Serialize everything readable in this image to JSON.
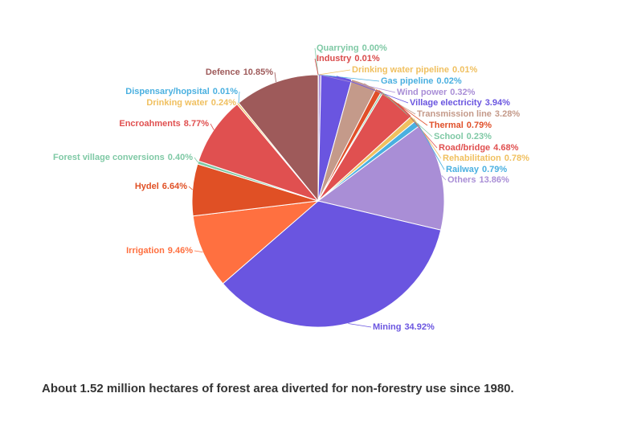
{
  "chart_data": {
    "type": "pie",
    "categories": [
      "Quarrying",
      "Industry",
      "Drinking water pipeline",
      "Gas pipeline",
      "Wind power",
      "Village electricity",
      "Transmission line",
      "Thermal",
      "School",
      "Road/bridge",
      "Rehabilitation",
      "Railway",
      "Others",
      "Mining",
      "Irrigation",
      "Hydel",
      "Forest village conversions",
      "Encroahments",
      "Drinking water",
      "Dispensary/hopsital",
      "Defence"
    ],
    "values": [
      0,
      0.01,
      0.01,
      0.02,
      0.32,
      3.94,
      3.28,
      0.79,
      0.23,
      4.68,
      0.78,
      0.79,
      13.86,
      34.92,
      9.46,
      6.64,
      0.4,
      8.77,
      0.24,
      0.01,
      10.85
    ],
    "value_labels": [
      "0.00%",
      "0.01%",
      "0.01%",
      "0.02%",
      "0.32%",
      "3.94%",
      "3.28%",
      "0.79%",
      "0.23%",
      "4.68%",
      "0.78%",
      "0.79%",
      "13.86%",
      "34.92%",
      "9.46%",
      "6.64%",
      "0.40%",
      "8.77%",
      "0.24%",
      "0.01%",
      "10.85%"
    ],
    "colors": [
      "#7fc9a5",
      "#d94a4a",
      "#f0c060",
      "#4ab0e0",
      "#a98ed6",
      "#6a55e0",
      "#c49a8a",
      "#e0502a",
      "#7fc9a5",
      "#e05050",
      "#f0c060",
      "#4ab0e0",
      "#a98ed6",
      "#6a55e0",
      "#ff7040",
      "#e05025",
      "#7fc9a5",
      "#e05050",
      "#f0c060",
      "#4ab0e0",
      "#9e5a5a"
    ]
  },
  "caption": "About 1.52 million hectares of forest area diverted for non-forestry use since 1980."
}
